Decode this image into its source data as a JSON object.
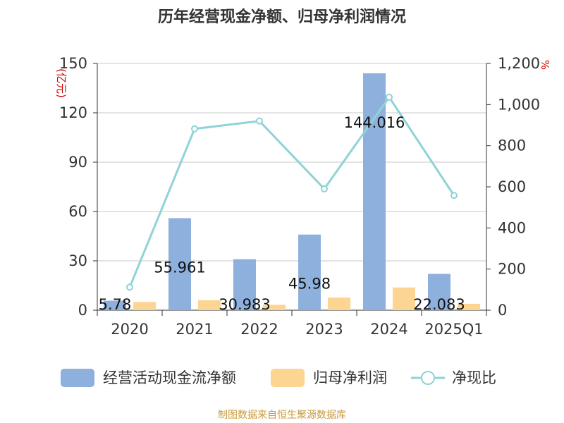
{
  "title": "历年经营现金净额、归母净利润情况",
  "source": "制图数据来自恒生聚源数据库",
  "colors": {
    "bar1": "#8eb0dc",
    "bar2": "#fdd593",
    "line": "#8fd3d6",
    "axis": "#333333",
    "grid": "#c8c8c8",
    "unit": "#cc0000"
  },
  "chart_data": {
    "type": "bar",
    "categories": [
      "2020",
      "2021",
      "2022",
      "2023",
      "2024",
      "2025Q1"
    ],
    "y_left": {
      "unit": "(亿元)",
      "ylim": [
        0,
        150
      ],
      "ticks": [
        "0",
        "30",
        "60",
        "90",
        "120",
        "150"
      ]
    },
    "y_right": {
      "unit": "%",
      "ylim": [
        0,
        1200
      ],
      "ticks": [
        "0",
        "200",
        "400",
        "600",
        "800",
        "1,000",
        "1,200"
      ]
    },
    "series": [
      {
        "name": "经营活动现金流净额",
        "type": "bar",
        "axis": "left",
        "values": [
          5.78,
          55.961,
          30.983,
          45.98,
          144.016,
          22.083
        ],
        "labels": [
          "5.78",
          "55.961",
          "30.983",
          "45.98",
          "144.016",
          "22.083"
        ]
      },
      {
        "name": "归母净利润",
        "type": "bar",
        "axis": "left",
        "values": [
          5.0,
          6.1,
          3.3,
          7.7,
          13.8,
          3.9
        ]
      },
      {
        "name": "净现比",
        "type": "line",
        "axis": "right",
        "values": [
          112,
          882,
          920,
          590,
          1036,
          558
        ]
      }
    ],
    "grid": true,
    "legend": "bottom"
  }
}
